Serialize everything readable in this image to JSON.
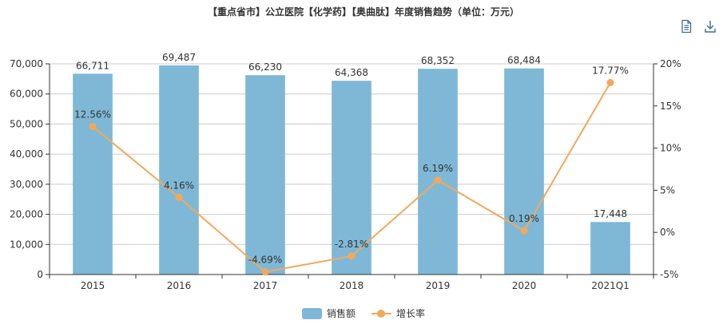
{
  "title": "【重点省市】公立医院【化学药】【奥曲肽】年度销售趋势（单位：万元）",
  "toolbar": {
    "icons": [
      "data-view-icon",
      "download-icon"
    ]
  },
  "colors": {
    "bar": "#7fb8d6",
    "line": "#f2a85b",
    "axis": "#333333",
    "grid": "#cccccc"
  },
  "chart_data": {
    "type": "bar",
    "categories": [
      "2015",
      "2016",
      "2017",
      "2018",
      "2019",
      "2020",
      "2021Q1"
    ],
    "series": [
      {
        "name": "销售额",
        "type": "bar",
        "axis": "left",
        "values": [
          66711,
          69487,
          66230,
          64368,
          68352,
          68484,
          17448
        ],
        "labels": [
          "66,711",
          "69,487",
          "66,230",
          "64,368",
          "68,352",
          "68,484",
          "17,448"
        ]
      },
      {
        "name": "增长率",
        "type": "line",
        "axis": "right",
        "values": [
          12.56,
          4.16,
          -4.69,
          -2.81,
          6.19,
          0.19,
          17.77
        ],
        "labels": [
          "12.56%",
          "4.16%",
          "-4.69%",
          "-2.81%",
          "6.19%",
          "0.19%",
          "17.77%"
        ]
      }
    ],
    "y_left": {
      "min": 0,
      "max": 70000,
      "ticks": [
        "0",
        "10,000",
        "20,000",
        "30,000",
        "40,000",
        "50,000",
        "60,000",
        "70,000"
      ]
    },
    "y_right": {
      "min": -5,
      "max": 20,
      "ticks": [
        "-5%",
        "0%",
        "5%",
        "10%",
        "15%",
        "20%"
      ]
    },
    "grid": true,
    "legend_position": "bottom-center"
  },
  "legend": {
    "items": [
      "销售额",
      "增长率"
    ]
  }
}
